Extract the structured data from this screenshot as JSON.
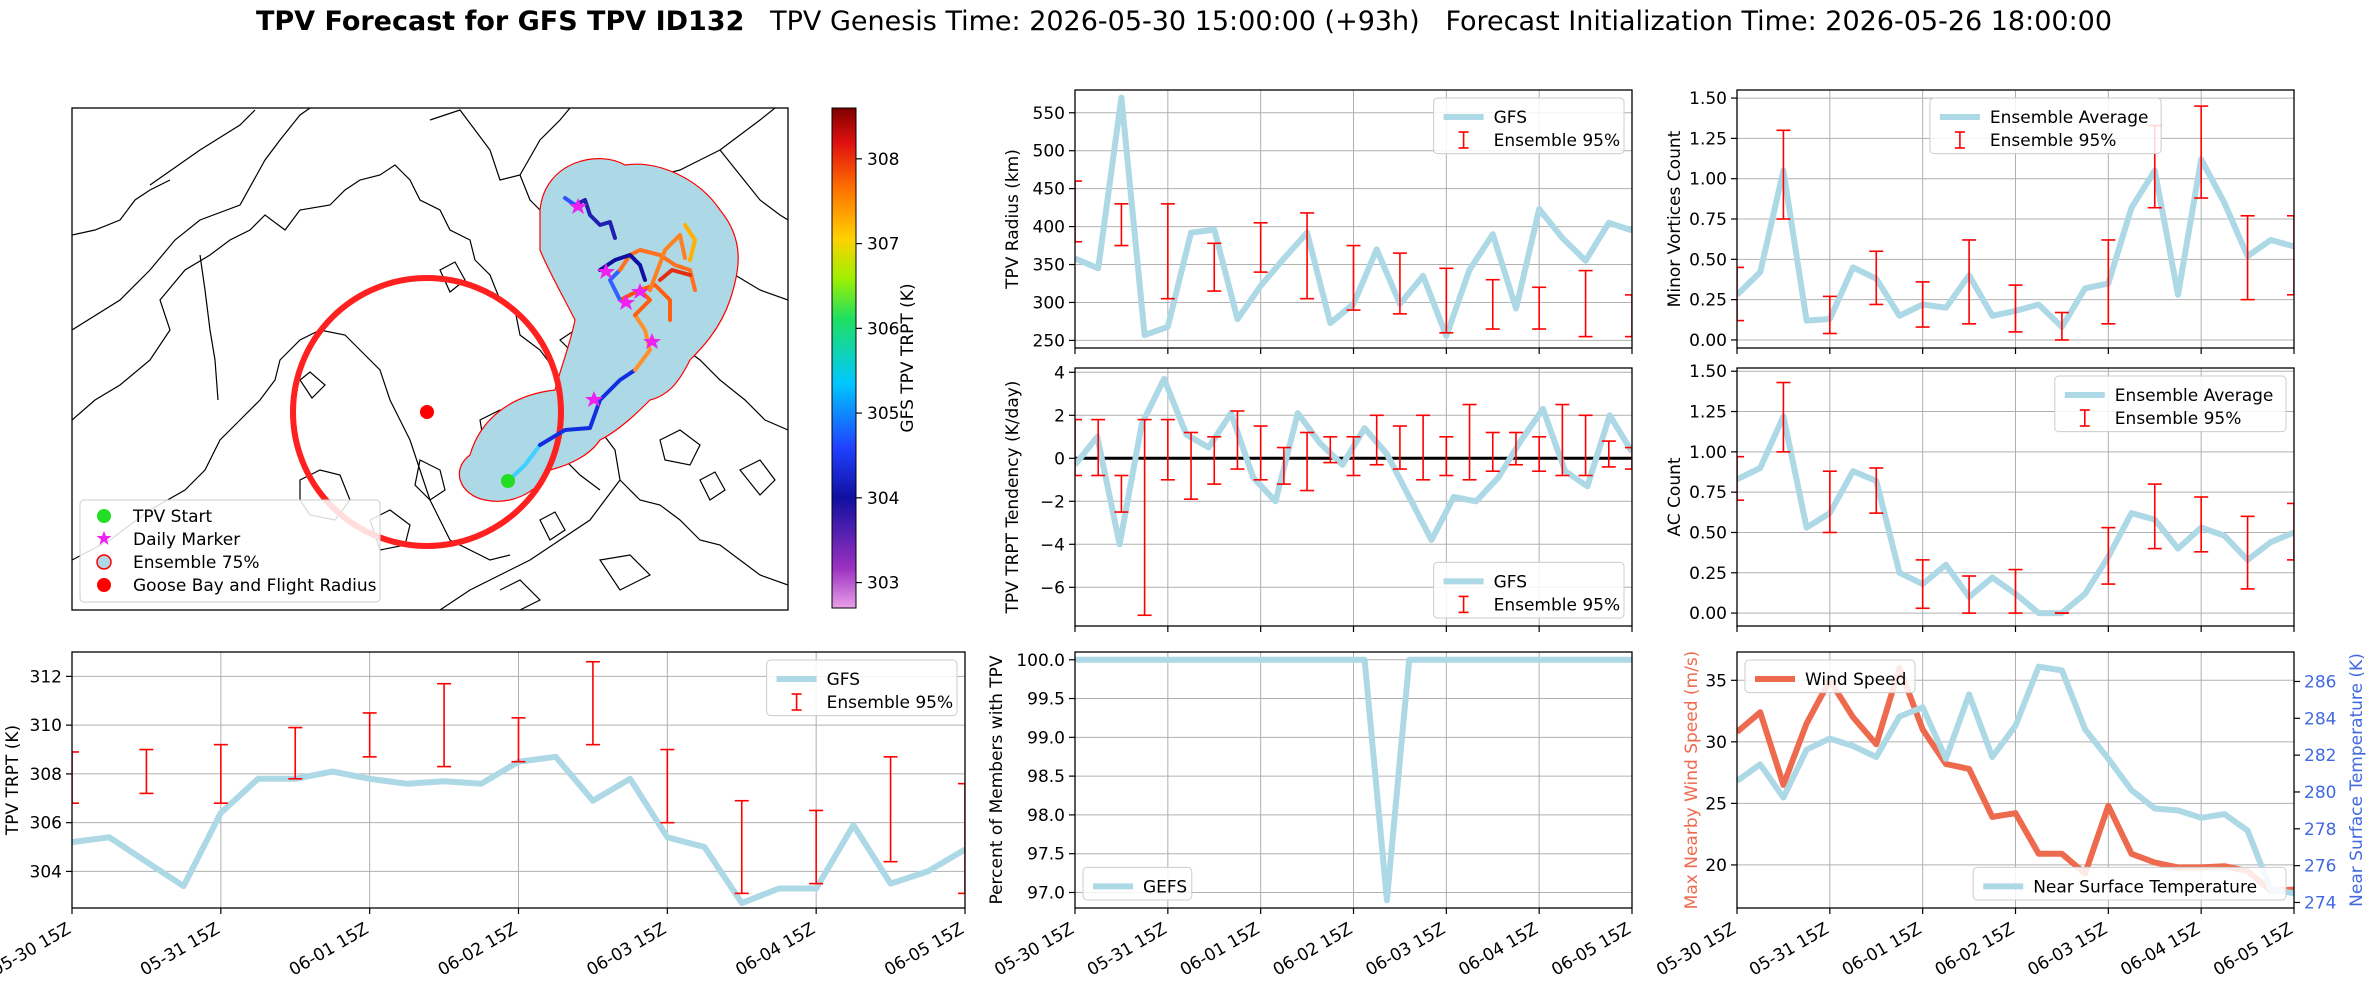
{
  "figure": {
    "title_bold": "TPV Forecast for GFS TPV ID132",
    "title_rest": "TPV Genesis Time: 2026-05-30 15:00:00 (+93h)   Forecast Initialization Time: 2026-05-26 18:00:00"
  },
  "map": {
    "colorbar_label": "GFS TPV TRPT (K)",
    "colorbar_ticks": [
      "303",
      "304",
      "305",
      "306",
      "307",
      "308"
    ],
    "colorbar_range": [
      302.7,
      308.6
    ],
    "legend": [
      {
        "label": "TPV Start",
        "marker": "circle",
        "color": "#22dd22"
      },
      {
        "label": "Daily Marker",
        "marker": "star",
        "color": "#ee22ee"
      },
      {
        "label": "Ensemble 75%",
        "marker": "circle",
        "color": "#add8e6"
      },
      {
        "label": "Goose Bay and Flight Radius",
        "marker": "circle",
        "color": "#ff0000"
      }
    ]
  },
  "chart_data": [
    {
      "id": "radius",
      "type": "line",
      "ylabel": "TPV Radius (km)",
      "ylim": [
        240,
        580
      ],
      "yticks": [
        250,
        300,
        350,
        400,
        450,
        500,
        550
      ],
      "legend_position": "top-right",
      "series": [
        {
          "name": "GFS",
          "color": "#add8e6",
          "values": [
            358,
            345,
            570,
            257,
            268,
            392,
            396,
            278,
            322,
            358,
            392,
            273,
            298,
            370,
            298,
            335,
            256,
            343,
            390,
            292,
            423,
            385,
            355,
            405,
            395
          ]
        },
        {
          "name": "Ensemble 95%",
          "color": "#ff0000",
          "errorbar": true,
          "x": [
            0,
            2,
            4,
            6,
            8,
            10,
            12,
            14,
            16,
            18,
            20,
            22,
            24
          ],
          "low": [
            380,
            375,
            305,
            315,
            340,
            305,
            290,
            285,
            260,
            265,
            265,
            255,
            255
          ],
          "high": [
            460,
            430,
            430,
            378,
            405,
            418,
            375,
            365,
            345,
            330,
            320,
            342,
            310
          ]
        }
      ]
    },
    {
      "id": "minor",
      "type": "line",
      "ylabel": "Minor Vortices Count",
      "ylim": [
        -0.05,
        1.55
      ],
      "yticks": [
        0.0,
        0.25,
        0.5,
        0.75,
        1.0,
        1.25,
        1.5
      ],
      "ytick_labels": [
        "0.00",
        "0.25",
        "0.50",
        "0.75",
        "1.00",
        "1.25",
        "1.50"
      ],
      "legend_position": "top-center",
      "series": [
        {
          "name": "Ensemble Average",
          "color": "#add8e6",
          "values": [
            0.28,
            0.42,
            1.05,
            0.12,
            0.13,
            0.45,
            0.38,
            0.15,
            0.22,
            0.2,
            0.4,
            0.15,
            0.18,
            0.22,
            0.08,
            0.32,
            0.35,
            0.82,
            1.05,
            0.28,
            1.12,
            0.85,
            0.52,
            0.62,
            0.58
          ]
        },
        {
          "name": "Ensemble 95%",
          "color": "#ff0000",
          "errorbar": true,
          "x": [
            0,
            2,
            4,
            6,
            8,
            10,
            12,
            14,
            16,
            18,
            20,
            22,
            24
          ],
          "low": [
            0.12,
            0.75,
            0.04,
            0.22,
            0.08,
            0.1,
            0.05,
            0.0,
            0.1,
            0.82,
            0.88,
            0.25,
            0.28
          ],
          "high": [
            0.45,
            1.3,
            0.27,
            0.55,
            0.36,
            0.62,
            0.34,
            0.17,
            0.62,
            1.33,
            1.45,
            0.77,
            0.77
          ]
        }
      ]
    },
    {
      "id": "tendency",
      "type": "line",
      "ylabel": "TPV TRPT Tendency (K/day)",
      "ylim": [
        -7.8,
        4.2
      ],
      "yticks": [
        -6,
        -4,
        -2,
        0,
        2,
        4
      ],
      "ytick_labels": [
        "−6",
        "−4",
        "−2",
        "0",
        "2",
        "4"
      ],
      "zero_line": true,
      "legend_position": "bottom-right",
      "series": [
        {
          "name": "GFS",
          "color": "#add8e6",
          "values": [
            -0.3,
            1.0,
            -4.0,
            1.6,
            3.7,
            1.1,
            0.5,
            2.1,
            -0.9,
            -2.0,
            2.1,
            0.7,
            -0.3,
            1.4,
            0.2,
            -1.8,
            -3.8,
            -1.8,
            -2.0,
            -0.9,
            0.8,
            2.3,
            -0.6,
            -1.3,
            2.0,
            0.3
          ]
        },
        {
          "name": "Ensemble 95%",
          "color": "#ff0000",
          "errorbar": true,
          "x": [
            0,
            1,
            2,
            3,
            4,
            5,
            6,
            7,
            8,
            9,
            10,
            11,
            12,
            13,
            14,
            15,
            16,
            17,
            18,
            19,
            20,
            21,
            22,
            23,
            24,
            25
          ],
          "low": [
            -0.8,
            -0.8,
            -2.5,
            -7.3,
            -1.0,
            -1.9,
            -1.2,
            -0.5,
            -1.0,
            -1.2,
            -1.5,
            -0.2,
            -0.8,
            -0.3,
            -0.5,
            -1.0,
            -0.8,
            -1.0,
            -0.6,
            -0.3,
            -0.6,
            -0.8,
            -0.8,
            -0.4,
            -0.5,
            -1.0
          ],
          "high": [
            1.8,
            1.8,
            -0.8,
            1.8,
            1.8,
            1.2,
            1.0,
            2.2,
            1.5,
            0.5,
            1.2,
            1.0,
            1.0,
            2.0,
            1.5,
            2.0,
            1.0,
            2.5,
            1.2,
            1.2,
            1.0,
            2.5,
            2.0,
            0.8,
            0.5,
            1.8
          ]
        }
      ]
    },
    {
      "id": "ac",
      "type": "line",
      "ylabel": "AC Count",
      "ylim": [
        -0.08,
        1.52
      ],
      "yticks": [
        0.0,
        0.25,
        0.5,
        0.75,
        1.0,
        1.25,
        1.5
      ],
      "ytick_labels": [
        "0.00",
        "0.25",
        "0.50",
        "0.75",
        "1.00",
        "1.25",
        "1.50"
      ],
      "legend_position": "top-right",
      "series": [
        {
          "name": "Ensemble Average",
          "color": "#add8e6",
          "values": [
            0.83,
            0.9,
            1.22,
            0.53,
            0.62,
            0.88,
            0.82,
            0.25,
            0.18,
            0.3,
            0.1,
            0.22,
            0.12,
            0.0,
            0.0,
            0.12,
            0.35,
            0.62,
            0.58,
            0.4,
            0.53,
            0.48,
            0.33,
            0.44,
            0.5
          ]
        },
        {
          "name": "Ensemble 95%",
          "color": "#ff0000",
          "errorbar": true,
          "x": [
            0,
            2,
            4,
            6,
            8,
            10,
            12,
            14,
            16,
            18,
            20,
            22,
            24
          ],
          "low": [
            0.7,
            1.0,
            0.5,
            0.62,
            0.03,
            0.0,
            0.0,
            0.0,
            0.18,
            0.4,
            0.38,
            0.15,
            0.33
          ],
          "high": [
            0.97,
            1.43,
            0.88,
            0.9,
            0.33,
            0.23,
            0.27,
            0.0,
            0.53,
            0.8,
            0.72,
            0.6,
            0.68
          ]
        }
      ]
    },
    {
      "id": "trpt",
      "type": "line",
      "ylabel": "TPV TRPT (K)",
      "ylim": [
        302.5,
        313.0
      ],
      "yticks": [
        304,
        306,
        308,
        310,
        312
      ],
      "legend_position": "top-right",
      "series": [
        {
          "name": "GFS",
          "color": "#add8e6",
          "values": [
            305.2,
            305.4,
            304.4,
            303.4,
            306.4,
            307.8,
            307.8,
            308.1,
            307.8,
            307.6,
            307.7,
            307.6,
            308.5,
            308.7,
            306.9,
            307.8,
            305.4,
            305.0,
            302.7,
            303.3,
            303.3,
            305.9,
            303.5,
            304.0,
            304.9
          ]
        },
        {
          "name": "Ensemble 95%",
          "color": "#ff0000",
          "errorbar": true,
          "x": [
            0,
            2,
            4,
            6,
            8,
            10,
            12,
            14,
            16,
            18,
            20,
            22,
            24
          ],
          "low": [
            306.8,
            307.2,
            306.8,
            307.8,
            308.7,
            308.3,
            308.5,
            309.2,
            306.0,
            303.1,
            303.5,
            304.4,
            303.1
          ],
          "high": [
            308.9,
            309.0,
            309.2,
            309.9,
            310.5,
            311.7,
            310.3,
            312.6,
            309.0,
            306.9,
            306.5,
            308.7,
            307.6
          ]
        }
      ]
    },
    {
      "id": "members",
      "type": "line",
      "ylabel": "Percent of Members with TPV",
      "ylim": [
        96.8,
        100.1
      ],
      "yticks": [
        97.0,
        97.5,
        98.0,
        98.5,
        99.0,
        99.5,
        100.0
      ],
      "ytick_labels": [
        "97.0",
        "97.5",
        "98.0",
        "98.5",
        "99.0",
        "99.5",
        "100.0"
      ],
      "legend_position": "bottom-left",
      "series": [
        {
          "name": "GEFS",
          "color": "#add8e6",
          "values": [
            100,
            100,
            100,
            100,
            100,
            100,
            100,
            100,
            100,
            100,
            100,
            100,
            100,
            100,
            96.9,
            100,
            100,
            100,
            100,
            100,
            100,
            100,
            100,
            100,
            100,
            100
          ]
        }
      ]
    },
    {
      "id": "wind",
      "type": "line",
      "ylabel": "Max Nearby Wind Speed (m/s)",
      "ylabel_color": "#ee6a4f",
      "ylabel2": "Near Surface Temperature (K)",
      "ylabel2_color": "#4169e1",
      "ylim": [
        16.5,
        37.3
      ],
      "yticks": [
        20,
        25,
        30,
        35
      ],
      "ylim2": [
        273.7,
        287.6
      ],
      "yticks2": [
        274,
        276,
        278,
        280,
        282,
        284,
        286
      ],
      "series": [
        {
          "name": "Wind Speed",
          "color": "#ee6a4f",
          "axis": "left",
          "legend_position": "top-left",
          "values": [
            30.8,
            32.4,
            26.5,
            31.5,
            35.0,
            32.0,
            29.8,
            36.0,
            31.0,
            28.2,
            27.8,
            23.9,
            24.2,
            20.9,
            20.9,
            19.3,
            24.8,
            20.9,
            20.2,
            19.8,
            19.8,
            19.9,
            19.5,
            17.9,
            18.0
          ]
        },
        {
          "name": "Near Surface Temperature",
          "color": "#add8e6",
          "axis": "right",
          "legend_position": "bottom-right",
          "values": [
            280.6,
            281.5,
            279.7,
            282.3,
            282.9,
            282.5,
            281.9,
            284.1,
            284.6,
            281.8,
            285.3,
            281.9,
            283.6,
            286.8,
            286.6,
            283.4,
            281.8,
            280.1,
            279.1,
            279.0,
            278.6,
            278.8,
            277.9,
            274.7,
            274.5
          ]
        }
      ]
    }
  ],
  "time_axis": {
    "tick_labels": [
      "05-30 15Z",
      "05-31 15Z",
      "06-01 15Z",
      "06-02 15Z",
      "06-03 15Z",
      "06-04 15Z",
      "06-05 15Z"
    ]
  }
}
